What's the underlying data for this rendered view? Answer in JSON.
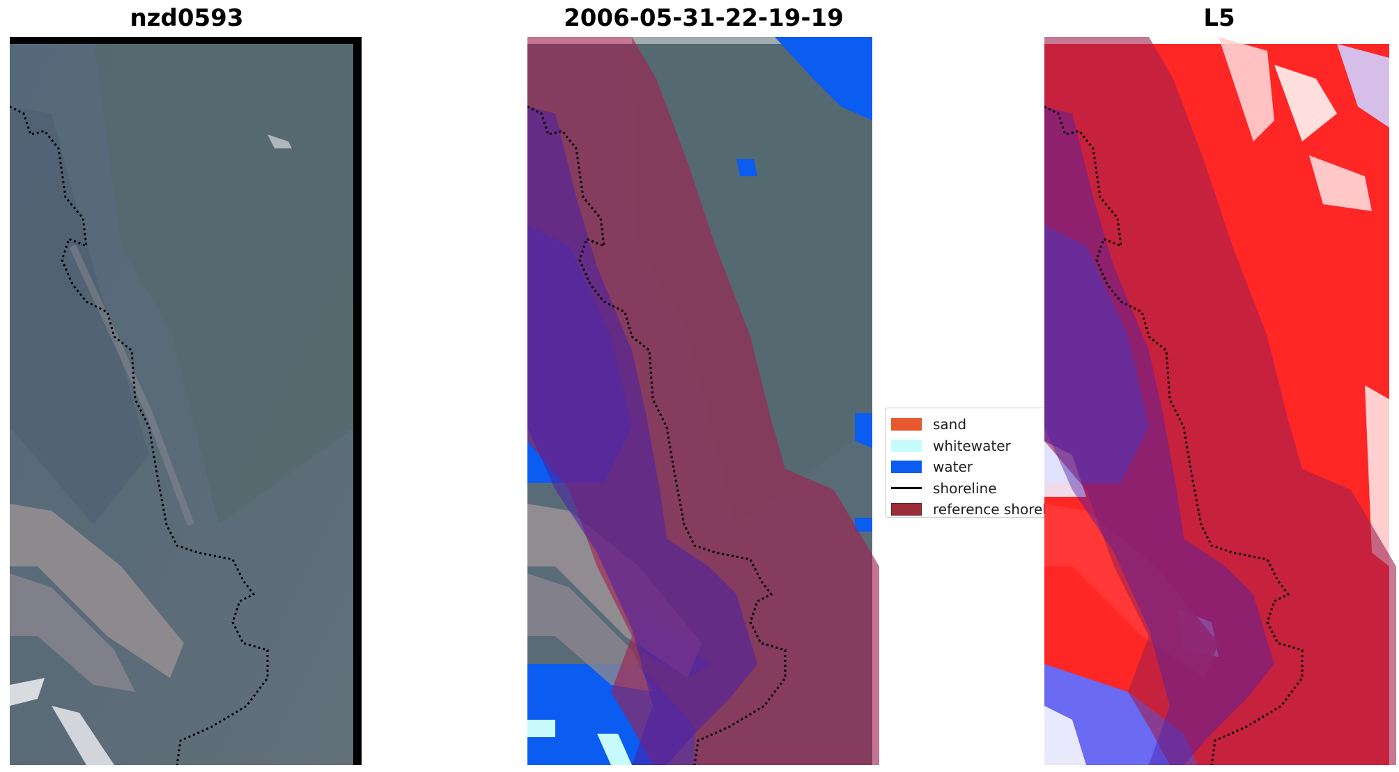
{
  "panels": [
    {
      "title": "nzd0593"
    },
    {
      "title": "2006-05-31-22-19-19"
    },
    {
      "title": "L5"
    }
  ],
  "legend": {
    "items": [
      {
        "label": "sand",
        "kind": "patch",
        "color": "#e8582f"
      },
      {
        "label": "whitewater",
        "kind": "patch",
        "color": "#c8fbfb"
      },
      {
        "label": "water",
        "kind": "patch",
        "color": "#0b5cf0"
      },
      {
        "label": "shoreline",
        "kind": "line",
        "color": "#000000"
      },
      {
        "label": "reference shoreline buffer",
        "kind": "patch",
        "color": "#9b2c3a"
      }
    ]
  },
  "colors": {
    "image_base": "#5b6b78",
    "image_dark": "#4a5a69",
    "image_vegetation": "#536b6b",
    "buffer": "#a0204f",
    "water_class": "#0b5cf0",
    "l5_red": "#ff1a1a",
    "l5_blue": "#3a3af0"
  }
}
